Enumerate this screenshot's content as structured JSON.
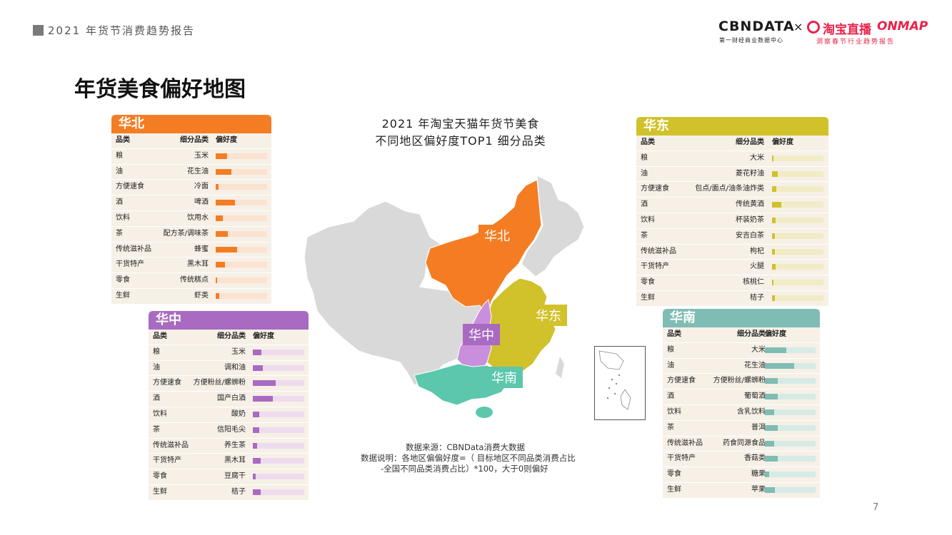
{
  "header": {
    "report": "2021 年货节消费趋势报告"
  },
  "logo": {
    "cbn": "CBNDATA",
    "cbn_sub": "第一财经商业数据中心",
    "x": "×",
    "taobao": "淘宝直播",
    "onmap": "ONMAP",
    "taobao_sub": "洞察春节行业趋势报告"
  },
  "page": {
    "title": "年货美食偏好地图",
    "number": "7"
  },
  "chart_title": {
    "line1": "2021 年淘宝天猫年货节美食",
    "line2": "不同地区偏好度TOP1 细分品类"
  },
  "source": {
    "line1": "数据来源：CBNData消费大数据",
    "line2": "数据说明：各地区偏偏好度=（ 目标地区不同品类消费占比",
    "line3": "-全国不同品类消费占比）*100，大于0则偏好"
  },
  "colors": {
    "north": "#f47d23",
    "central": "#a96ac2",
    "east": "#d1c12a",
    "south": "#7fbcb4",
    "other": "#d9d9d9"
  },
  "regions": {
    "north": "华北",
    "central": "华中",
    "east": "华东",
    "south": "华南"
  },
  "chart_data": [
    {
      "type": "bar",
      "title": "华北",
      "columns": [
        "品类",
        "细分品类",
        "偏好度"
      ],
      "categories": [
        "粮",
        "油",
        "方便速食",
        "酒",
        "饮料",
        "茶",
        "传统滋补品",
        "干货特产",
        "零食",
        "生鲜"
      ],
      "subcategories": [
        "玉米",
        "花生油",
        "冷面",
        "啤酒",
        "饮用水",
        "配方茶/调味茶",
        "蜂蜜",
        "黑木耳",
        "传统糕点",
        "虾类"
      ],
      "values": [
        0.22,
        0.3,
        0.05,
        0.38,
        0.14,
        0.24,
        0.41,
        0.18,
        0.03,
        0.07
      ]
    },
    {
      "type": "bar",
      "title": "华中",
      "columns": [
        "品类",
        "细分品类",
        "偏好度"
      ],
      "categories": [
        "粮",
        "油",
        "方便速食",
        "酒",
        "饮料",
        "茶",
        "传统滋补品",
        "干货特产",
        "零食",
        "生鲜"
      ],
      "subcategories": [
        "玉米",
        "调和油",
        "方便粉丝/螺蛳粉",
        "国产白酒",
        "酸奶",
        "信阳毛尖",
        "养生茶",
        "黑木耳",
        "豆腐干",
        "桔子"
      ],
      "values": [
        0.17,
        0.2,
        0.44,
        0.39,
        0.12,
        0.13,
        0.08,
        0.15,
        0.05,
        0.15
      ]
    },
    {
      "type": "bar",
      "title": "华东",
      "columns": [
        "品类",
        "细分品类",
        "偏好度"
      ],
      "categories": [
        "粮",
        "油",
        "方便速食",
        "酒",
        "饮料",
        "茶",
        "传统滋补品",
        "干货特产",
        "零食",
        "生鲜"
      ],
      "subcategories": [
        "大米",
        "菱花籽油",
        "包点/面点/油条油炸类",
        "传统黄酒",
        "杯装奶茶",
        "安吉白茶",
        "枸杞",
        "火腿",
        "核桃仁",
        "桔子"
      ],
      "values": [
        0.03,
        0.11,
        0.08,
        0.18,
        0.07,
        0.06,
        0.06,
        0.07,
        0.03,
        0.06
      ]
    },
    {
      "type": "bar",
      "title": "华南",
      "columns": [
        "品类",
        "细分品类",
        "偏好度"
      ],
      "categories": [
        "粮",
        "油",
        "方便速食",
        "酒",
        "饮料",
        "茶",
        "传统滋补品",
        "干货特产",
        "零食",
        "生鲜"
      ],
      "subcategories": [
        "大米",
        "花生油",
        "方便粉丝/螺蛳粉",
        "葡萄酒",
        "含乳饮料",
        "普洱",
        "药食同源食品",
        "香菇类",
        "糖果",
        "苹果"
      ],
      "values": [
        0.42,
        0.58,
        0.26,
        0.26,
        0.19,
        0.26,
        0.18,
        0.25,
        0.08,
        0.2
      ]
    }
  ]
}
